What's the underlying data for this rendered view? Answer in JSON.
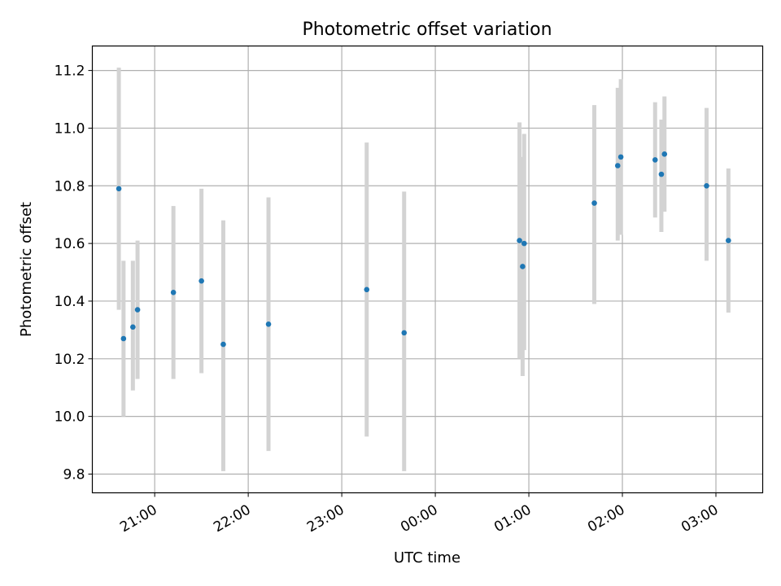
{
  "chart_data": {
    "type": "scatter",
    "title": "Photometric offset variation",
    "xlabel": "UTC time",
    "ylabel": "Photometric offset",
    "grid": true,
    "ylim": [
      9.735,
      11.285
    ],
    "xlim": [
      "20:20",
      "03:30"
    ],
    "x_ticks": [
      "21:00",
      "22:00",
      "23:00",
      "00:00",
      "01:00",
      "02:00",
      "03:00"
    ],
    "y_ticks": [
      "9.8",
      "10.0",
      "10.2",
      "10.4",
      "10.6",
      "10.8",
      "11.0",
      "11.2"
    ],
    "x_tick_values": [
      "21:00",
      "22:00",
      "23:00",
      "00:00",
      "01:00",
      "02:00",
      "03:00"
    ],
    "y_tick_values": [
      9.8,
      10.0,
      10.2,
      10.4,
      10.6,
      10.8,
      11.0,
      11.2
    ],
    "point_color": "#1f77b4",
    "errorbar_color": "#d3d3d3",
    "points": [
      {
        "x": "20:37",
        "y": 10.79,
        "ylow": 10.37,
        "yhigh": 11.21
      },
      {
        "x": "20:40",
        "y": 10.27,
        "ylow": 10.0,
        "yhigh": 10.54
      },
      {
        "x": "20:46",
        "y": 10.31,
        "ylow": 10.09,
        "yhigh": 10.54
      },
      {
        "x": "20:49",
        "y": 10.37,
        "ylow": 10.13,
        "yhigh": 10.61
      },
      {
        "x": "21:12",
        "y": 10.43,
        "ylow": 10.13,
        "yhigh": 10.73
      },
      {
        "x": "21:30",
        "y": 10.47,
        "ylow": 10.15,
        "yhigh": 10.79
      },
      {
        "x": "21:44",
        "y": 10.25,
        "ylow": 9.81,
        "yhigh": 10.68
      },
      {
        "x": "22:13",
        "y": 10.32,
        "ylow": 9.88,
        "yhigh": 10.76
      },
      {
        "x": "23:16",
        "y": 10.44,
        "ylow": 9.93,
        "yhigh": 10.95
      },
      {
        "x": "23:40",
        "y": 10.29,
        "ylow": 9.81,
        "yhigh": 10.78
      },
      {
        "x": "00:54",
        "y": 10.61,
        "ylow": 10.2,
        "yhigh": 11.02
      },
      {
        "x": "00:56",
        "y": 10.52,
        "ylow": 10.14,
        "yhigh": 10.9
      },
      {
        "x": "00:57",
        "y": 10.6,
        "ylow": 10.23,
        "yhigh": 10.98
      },
      {
        "x": "01:42",
        "y": 10.74,
        "ylow": 10.39,
        "yhigh": 11.08
      },
      {
        "x": "01:57",
        "y": 10.87,
        "ylow": 10.61,
        "yhigh": 11.14
      },
      {
        "x": "01:59",
        "y": 10.9,
        "ylow": 10.63,
        "yhigh": 11.17
      },
      {
        "x": "02:21",
        "y": 10.89,
        "ylow": 10.69,
        "yhigh": 11.09
      },
      {
        "x": "02:25",
        "y": 10.84,
        "ylow": 10.64,
        "yhigh": 11.03
      },
      {
        "x": "02:27",
        "y": 10.91,
        "ylow": 10.71,
        "yhigh": 11.11
      },
      {
        "x": "02:54",
        "y": 10.8,
        "ylow": 10.54,
        "yhigh": 11.07
      },
      {
        "x": "03:08",
        "y": 10.61,
        "ylow": 10.36,
        "yhigh": 10.86
      }
    ]
  }
}
